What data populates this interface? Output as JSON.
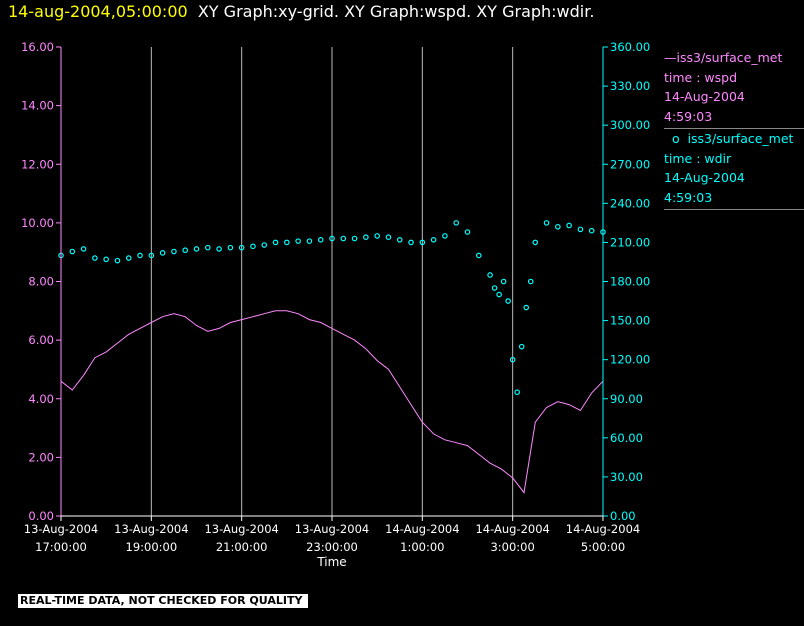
{
  "header": {
    "time": "14-aug-2004,05:00:00",
    "graphs": "XY Graph:xy-grid.  XY Graph:wspd.  XY Graph:wdir."
  },
  "legend": {
    "series1": {
      "symbol": "—",
      "name": "iss3/surface_met",
      "field": "time : wspd",
      "date": "14-Aug-2004",
      "time": "4:59:03",
      "color": "#ff88ff"
    },
    "series2": {
      "symbol": "o",
      "name": "iss3/surface_met",
      "field": "time : wdir",
      "date": "14-Aug-2004",
      "time": "4:59:03",
      "color": "#00ffff"
    }
  },
  "quality_note": "REAL-TIME DATA, NOT CHECKED FOR QUALITY",
  "chart_data": {
    "type": "line",
    "xlabel": "Time",
    "x_ticks": [
      {
        "date": "13-Aug-2004",
        "time": "17:00:00",
        "hour": 0
      },
      {
        "date": "13-Aug-2004",
        "time": "19:00:00",
        "hour": 2
      },
      {
        "date": "13-Aug-2004",
        "time": "21:00:00",
        "hour": 4
      },
      {
        "date": "13-Aug-2004",
        "time": "23:00:00",
        "hour": 6
      },
      {
        "date": "14-Aug-2004",
        "time": "1:00:00",
        "hour": 8
      },
      {
        "date": "14-Aug-2004",
        "time": "3:00:00",
        "hour": 10
      },
      {
        "date": "14-Aug-2004",
        "time": "5:00:00",
        "hour": 12
      }
    ],
    "xlim_hours": [
      0,
      12
    ],
    "grid": "vertical lines at each x tick",
    "y_left": {
      "ticks": [
        "0.00",
        "2.00",
        "4.00",
        "6.00",
        "8.00",
        "10.00",
        "12.00",
        "14.00",
        "16.00"
      ],
      "lim": [
        0,
        16
      ],
      "color": "#ff88ff"
    },
    "y_right": {
      "ticks": [
        "0.00",
        "30.00",
        "60.00",
        "90.00",
        "120.00",
        "150.00",
        "180.00",
        "210.00",
        "240.00",
        "270.00",
        "300.00",
        "330.00",
        "360.00"
      ],
      "lim": [
        0,
        360
      ],
      "color": "#00ffff"
    },
    "series": [
      {
        "name": "time : wspd",
        "axis": "left",
        "style": "line",
        "color": "#ff88ff",
        "x": [
          0.0,
          0.25,
          0.5,
          0.75,
          1.0,
          1.25,
          1.5,
          1.75,
          2.0,
          2.25,
          2.5,
          2.75,
          3.0,
          3.25,
          3.5,
          3.75,
          4.0,
          4.25,
          4.5,
          4.75,
          5.0,
          5.25,
          5.5,
          5.75,
          6.0,
          6.25,
          6.5,
          6.75,
          7.0,
          7.25,
          7.5,
          7.75,
          8.0,
          8.25,
          8.5,
          8.75,
          9.0,
          9.25,
          9.5,
          9.75,
          10.0,
          10.25,
          10.5,
          10.75,
          11.0,
          11.25,
          11.5,
          11.75,
          12.0
        ],
        "y": [
          4.6,
          4.3,
          4.8,
          5.4,
          5.6,
          5.9,
          6.2,
          6.4,
          6.6,
          6.8,
          6.9,
          6.8,
          6.5,
          6.3,
          6.4,
          6.6,
          6.7,
          6.8,
          6.9,
          7.0,
          7.0,
          6.9,
          6.7,
          6.6,
          6.4,
          6.2,
          6.0,
          5.7,
          5.3,
          5.0,
          4.4,
          3.8,
          3.2,
          2.8,
          2.6,
          2.5,
          2.4,
          2.1,
          1.8,
          1.6,
          1.3,
          0.8,
          3.2,
          3.7,
          3.9,
          3.8,
          3.6,
          4.2,
          4.6
        ]
      },
      {
        "name": "time : wdir",
        "axis": "right",
        "style": "scatter",
        "color": "#00ffff",
        "x": [
          0.0,
          0.25,
          0.5,
          0.75,
          1.0,
          1.25,
          1.5,
          1.75,
          2.0,
          2.25,
          2.5,
          2.75,
          3.0,
          3.25,
          3.5,
          3.75,
          4.0,
          4.25,
          4.5,
          4.75,
          5.0,
          5.25,
          5.5,
          5.75,
          6.0,
          6.25,
          6.5,
          6.75,
          7.0,
          7.25,
          7.5,
          7.75,
          8.0,
          8.25,
          8.5,
          8.75,
          9.0,
          9.25,
          9.5,
          9.6,
          9.7,
          9.8,
          9.9,
          10.0,
          10.1,
          10.2,
          10.3,
          10.4,
          10.5,
          10.75,
          11.0,
          11.25,
          11.5,
          11.75,
          12.0
        ],
        "y": [
          200,
          203,
          205,
          198,
          197,
          196,
          198,
          200,
          200,
          202,
          203,
          204,
          205,
          206,
          205,
          206,
          206,
          207,
          208,
          210,
          210,
          211,
          211,
          212,
          213,
          213,
          213,
          214,
          215,
          214,
          212,
          210,
          210,
          212,
          215,
          225,
          218,
          200,
          185,
          175,
          170,
          180,
          165,
          120,
          95,
          130,
          160,
          180,
          210,
          225,
          222,
          223,
          220,
          219,
          218
        ]
      }
    ]
  }
}
